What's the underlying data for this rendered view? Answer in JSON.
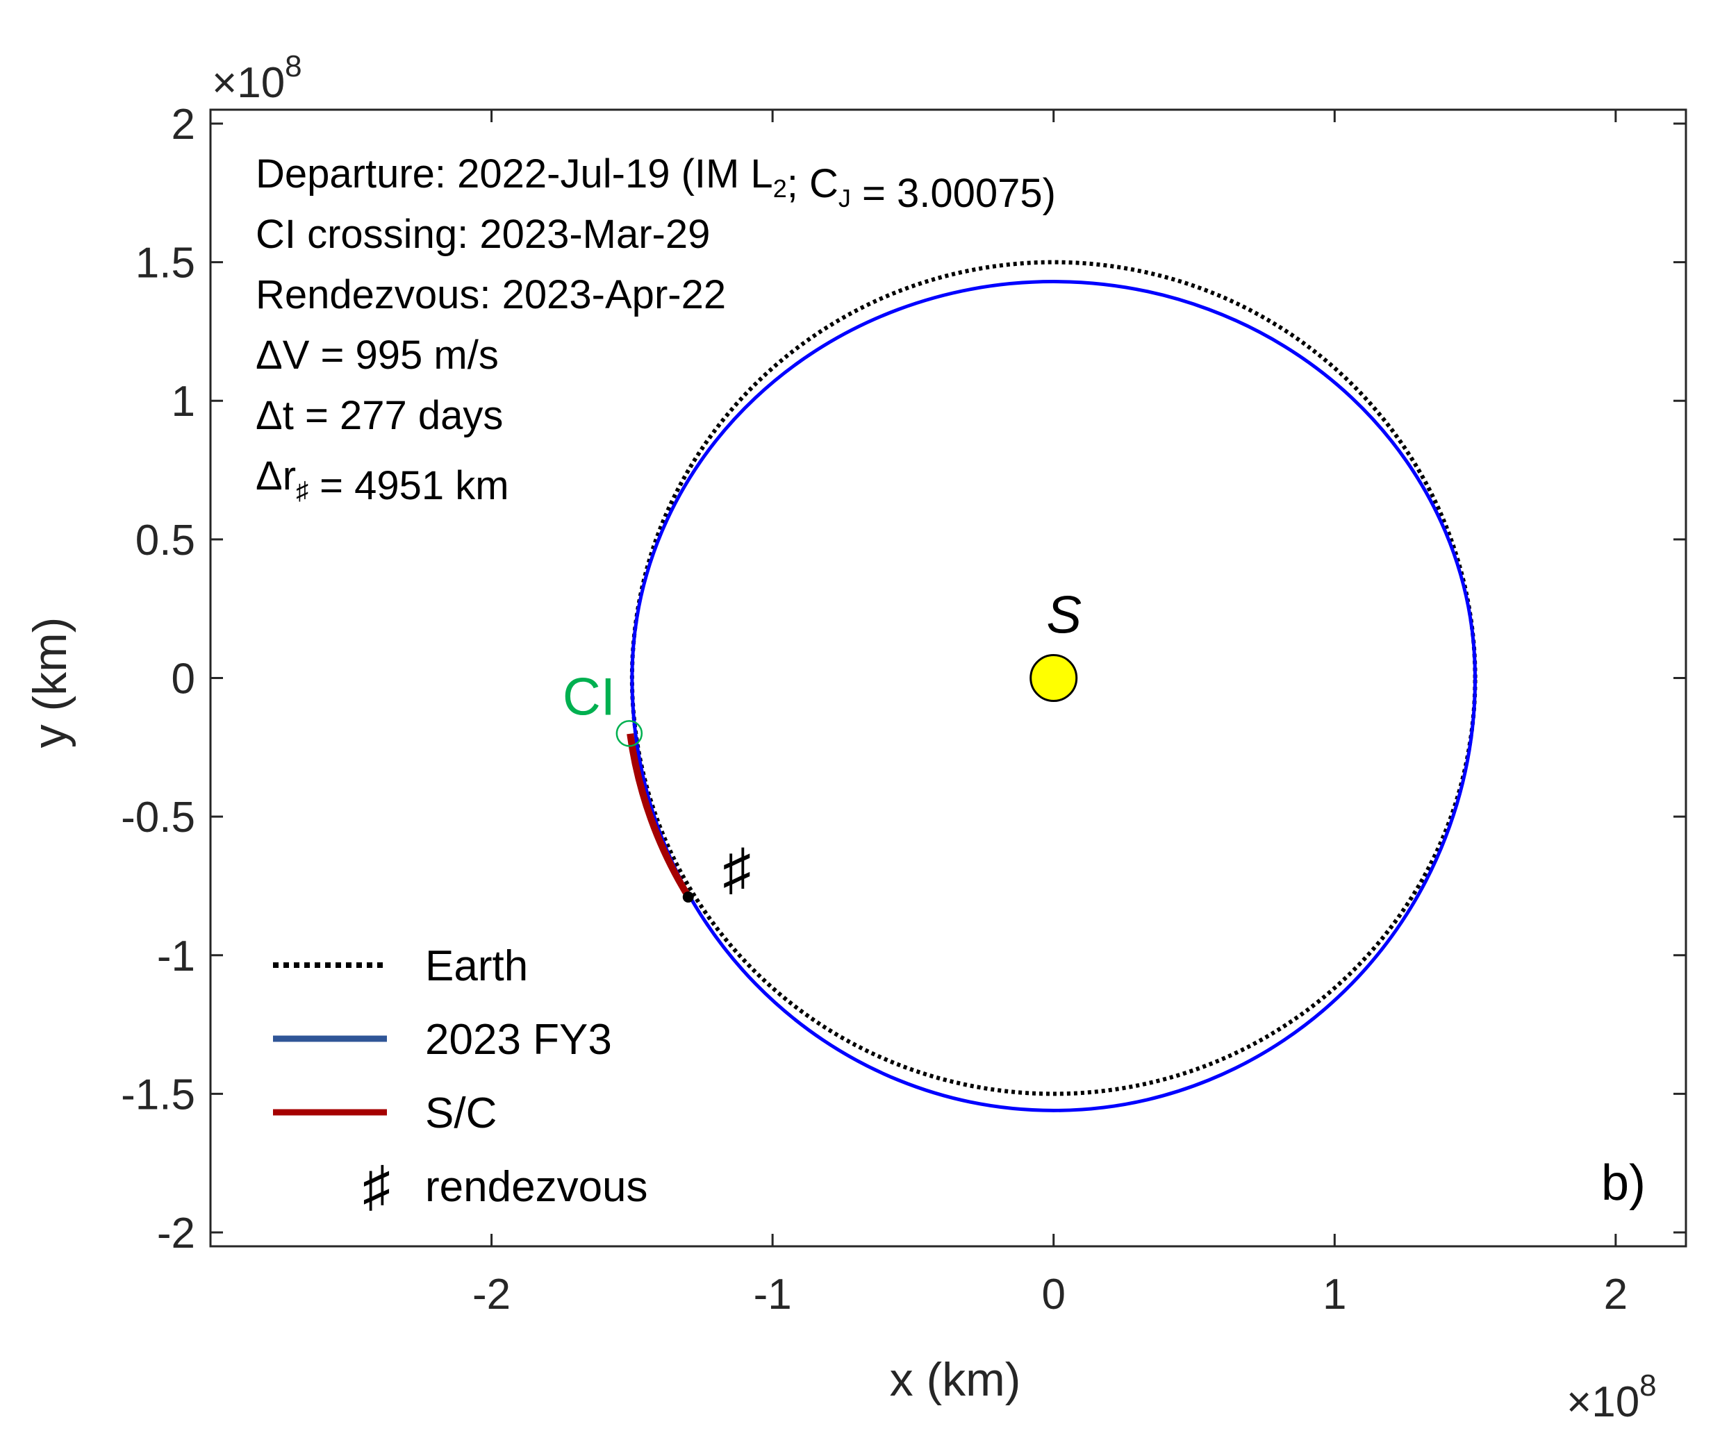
{
  "chart_data": {
    "type": "line",
    "title": "",
    "xlabel": "x (km)",
    "ylabel": "y (km)",
    "x_exponent": "×10",
    "x_exponent_power": "8",
    "y_exponent": "×10",
    "y_exponent_power": "8",
    "xlim": [
      -3.0,
      2.25
    ],
    "ylim": [
      -2.05,
      2.05
    ],
    "x_ticks": [
      -2,
      -1,
      0,
      1,
      2
    ],
    "x_tick_labels": [
      "-2",
      "-1",
      "0",
      "1",
      "2"
    ],
    "y_ticks": [
      -2,
      -1.5,
      -1,
      -0.5,
      0,
      0.5,
      1,
      1.5,
      2
    ],
    "y_tick_labels": [
      "-2",
      "-1.5",
      "-1",
      "-0.5",
      "0",
      "0.5",
      "1",
      "1.5",
      "2"
    ],
    "grid": false,
    "legend_position": "bottom-left",
    "panel_label": "b)",
    "annotations": [
      {
        "pre": "Departure:  2022-Jul-19  (IM L",
        "sub1": "2",
        "mid": "; C",
        "sub2": "J",
        "post": " = 3.00075)"
      },
      {
        "pre": "CI crossing: 2023-Mar-29"
      },
      {
        "pre": "Rendezvous: 2023-Apr-22"
      },
      {
        "pre": "ΔV = 995 m/s"
      },
      {
        "pre": "Δt = 277 days"
      },
      {
        "pre": "Δr",
        "sub1": "♯",
        "post": " = 4951 km"
      }
    ],
    "sun": {
      "label": "S",
      "x": 0,
      "y": 0,
      "color": "#ffff00"
    },
    "ci_marker": {
      "label": "CI",
      "x": -1.5,
      "y": -0.2,
      "color": "#00b050"
    },
    "rendezvous_marker": {
      "label": "♯",
      "x": -1.3,
      "y": -0.79
    },
    "series": [
      {
        "name": "Earth",
        "color": "#000000",
        "style": "dotted",
        "orbit": {
          "center": [
            0,
            0
          ],
          "rx": 1.5,
          "ry_top": 1.5,
          "ry_bottom": 1.5
        }
      },
      {
        "name": "2023 FY3",
        "color": "#0000ff",
        "legend_color": "#2f5597",
        "style": "solid",
        "orbit": {
          "center": [
            0,
            0
          ],
          "rx": 1.5,
          "ry_top": 1.43,
          "ry_bottom": 1.56
        }
      },
      {
        "name": "S/C",
        "color": "#a50000",
        "style": "solid",
        "arc": {
          "center": [
            0,
            0
          ],
          "radius": 1.52,
          "start_deg": 187.6,
          "end_deg": 211.5
        }
      }
    ],
    "legend": [
      {
        "label": "Earth",
        "color": "#000000",
        "style": "dotted"
      },
      {
        "label": "2023 FY3",
        "color": "#2f5597",
        "style": "solid"
      },
      {
        "label": "S/C",
        "color": "#a50000",
        "style": "solid"
      },
      {
        "label": "rendezvous",
        "symbol": "♯"
      }
    ]
  }
}
